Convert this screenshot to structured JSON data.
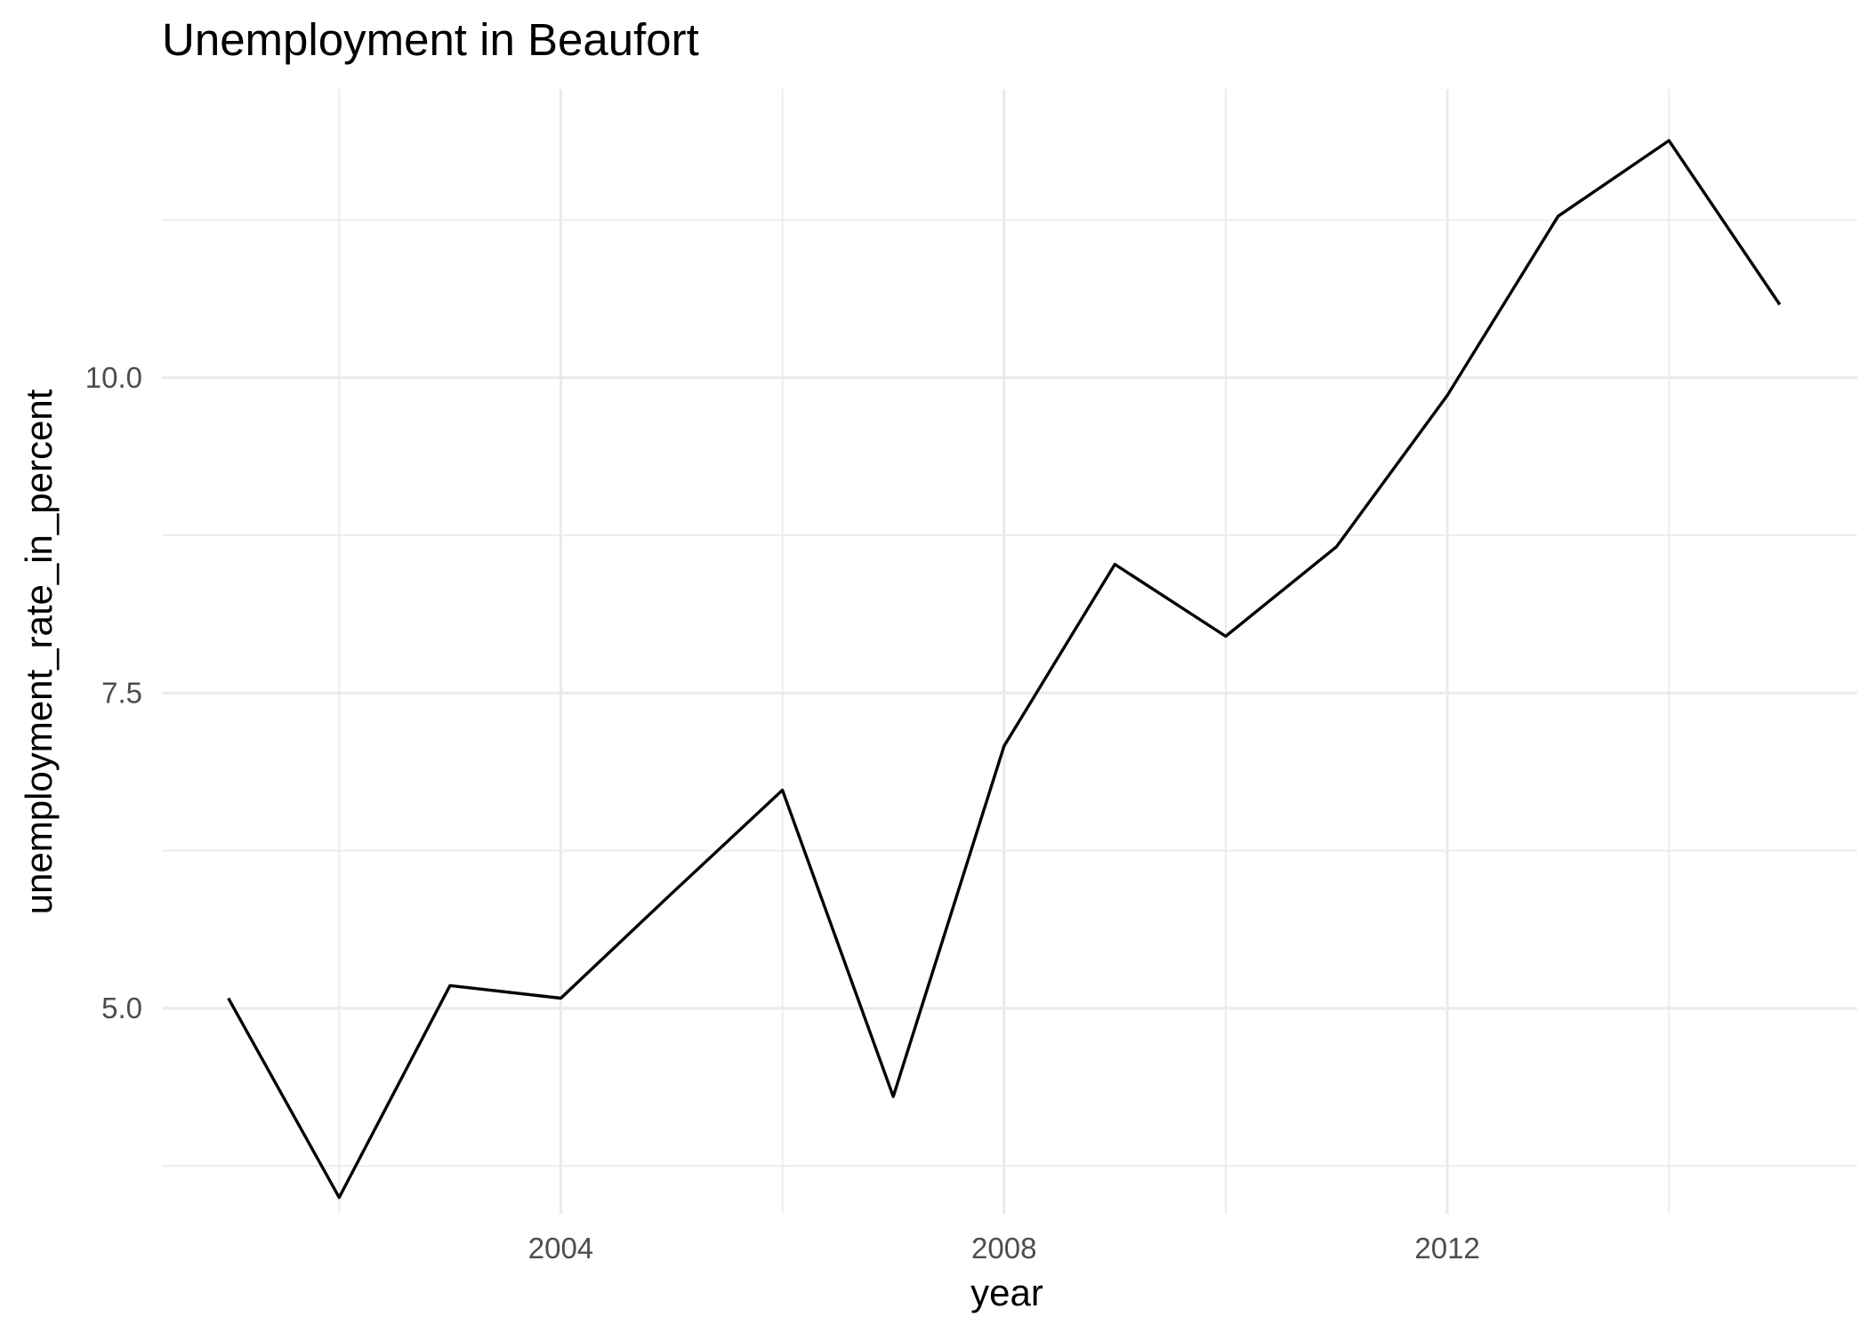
{
  "chart_data": {
    "type": "line",
    "title": "Unemployment in Beaufort",
    "xlabel": "year",
    "ylabel": "unemployment_rate_in_percent",
    "x": [
      2001,
      2002,
      2003,
      2004,
      2005,
      2006,
      2007,
      2008,
      2009,
      2010,
      2011,
      2012,
      2013,
      2014,
      2015
    ],
    "series": [
      {
        "values": [
          5.08,
          3.5,
          5.18,
          5.08,
          5.91,
          6.73,
          4.3,
          7.08,
          8.52,
          7.95,
          8.66,
          9.86,
          11.28,
          11.88,
          10.58
        ]
      }
    ],
    "xticks": [
      2004,
      2008,
      2012
    ],
    "xtick_labels": [
      "2004",
      "2008",
      "2012"
    ],
    "yticks": [
      5.0,
      7.5,
      10.0
    ],
    "ytick_labels": [
      "5.0",
      "7.5",
      "10.0"
    ],
    "xlim": [
      2000.4,
      2015.7
    ],
    "ylim": [
      3.37,
      12.29
    ],
    "grid": true,
    "line_color": "#000000",
    "grid_color": "#ebebeb",
    "tick_label_color": "#4d4d4d"
  }
}
